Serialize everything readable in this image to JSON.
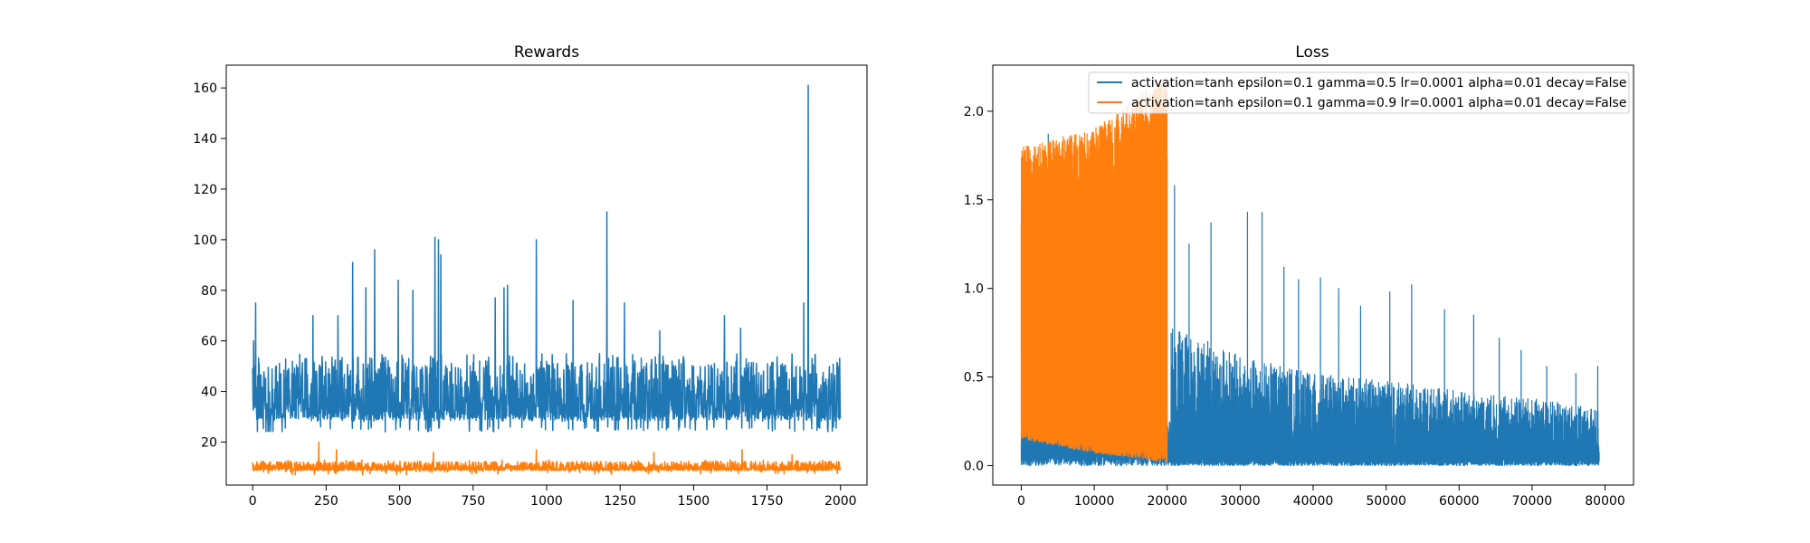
{
  "chart_data": [
    {
      "type": "line",
      "title": "Rewards",
      "xlabel": "",
      "ylabel": "",
      "xlim": [
        -90,
        2090
      ],
      "ylim": [
        3,
        169
      ],
      "xticks": [
        0,
        250,
        500,
        750,
        1000,
        1250,
        1500,
        1750,
        2000
      ],
      "xtick_labels": [
        "0",
        "250",
        "500",
        "750",
        "1000",
        "1250",
        "1500",
        "1750",
        "2000"
      ],
      "yticks": [
        20,
        40,
        60,
        80,
        100,
        120,
        140,
        160
      ],
      "ytick_labels": [
        "20",
        "40",
        "60",
        "80",
        "100",
        "120",
        "140",
        "160"
      ],
      "grid": false,
      "series": [
        {
          "color": "#1f77b4",
          "n_points": 2000,
          "baseline": 30,
          "typical_range": [
            24,
            55
          ],
          "peaks": [
            [
              3,
              60
            ],
            [
              10,
              75
            ],
            [
              205,
              70
            ],
            [
              290,
              70
            ],
            [
              340,
              91
            ],
            [
              385,
              81
            ],
            [
              415,
              96
            ],
            [
              495,
              84
            ],
            [
              545,
              80
            ],
            [
              620,
              101
            ],
            [
              632,
              100
            ],
            [
              640,
              94
            ],
            [
              825,
              77
            ],
            [
              855,
              81
            ],
            [
              867,
              82
            ],
            [
              965,
              100
            ],
            [
              1090,
              76
            ],
            [
              1205,
              111
            ],
            [
              1265,
              75
            ],
            [
              1385,
              64
            ],
            [
              1605,
              70
            ],
            [
              1660,
              65
            ],
            [
              1875,
              75
            ],
            [
              1890,
              161
            ]
          ]
        },
        {
          "color": "#ff7f0e",
          "n_points": 2000,
          "baseline": 9,
          "typical_range": [
            8,
            13
          ],
          "peaks": [
            [
              225,
              20
            ],
            [
              285,
              17
            ],
            [
              615,
              16
            ],
            [
              965,
              17
            ],
            [
              1365,
              16
            ],
            [
              1665,
              17
            ],
            [
              1835,
              15
            ]
          ]
        }
      ]
    },
    {
      "type": "line",
      "title": "Loss",
      "xlabel": "",
      "ylabel": "",
      "xlim": [
        -3900,
        83900
      ],
      "ylim": [
        -0.11,
        2.26
      ],
      "xticks": [
        0,
        10000,
        20000,
        30000,
        40000,
        50000,
        60000,
        70000,
        80000
      ],
      "xtick_labels": [
        "0",
        "10000",
        "20000",
        "30000",
        "40000",
        "50000",
        "60000",
        "70000",
        "80000"
      ],
      "yticks": [
        0.0,
        0.5,
        1.0,
        1.5,
        2.0
      ],
      "ytick_labels": [
        "0.0",
        "0.5",
        "1.0",
        "1.5",
        "2.0"
      ],
      "grid": false,
      "legend_position": "top-right",
      "series": [
        {
          "name": "activation=tanh epsilon=0.1 gamma=0.5 lr=0.0001 alpha=0.01 decay=False",
          "color": "#1f77b4",
          "x_range": [
            0,
            79200
          ],
          "dense_band_top": [
            [
              20500,
              0.8
            ],
            [
              30000,
              0.62
            ],
            [
              40000,
              0.52
            ],
            [
              50000,
              0.48
            ],
            [
              60000,
              0.42
            ],
            [
              70000,
              0.38
            ],
            [
              79200,
              0.32
            ]
          ],
          "peaks": [
            [
              3700,
              1.87
            ],
            [
              7500,
              1.67
            ],
            [
              21000,
              1.58
            ],
            [
              23000,
              1.25
            ],
            [
              26000,
              1.37
            ],
            [
              31000,
              1.43
            ],
            [
              33000,
              1.43
            ],
            [
              36000,
              1.12
            ],
            [
              38000,
              1.05
            ],
            [
              41000,
              1.06
            ],
            [
              43500,
              1.0
            ],
            [
              46500,
              0.9
            ],
            [
              50500,
              0.98
            ],
            [
              53500,
              1.02
            ],
            [
              58000,
              0.88
            ],
            [
              62000,
              0.85
            ],
            [
              65500,
              0.72
            ],
            [
              68500,
              0.65
            ],
            [
              72000,
              0.56
            ],
            [
              76000,
              0.52
            ],
            [
              79000,
              0.56
            ]
          ]
        },
        {
          "name": "activation=tanh epsilon=0.1 gamma=0.9 lr=0.0001 alpha=0.01 decay=False",
          "color": "#ff7f0e",
          "x_range": [
            0,
            20000
          ],
          "band_top": [
            [
              0,
              1.8
            ],
            [
              10000,
              1.9
            ],
            [
              20000,
              2.2
            ]
          ],
          "band_bottom": [
            [
              0,
              0.15
            ],
            [
              10000,
              0.07
            ],
            [
              20000,
              0.02
            ]
          ]
        }
      ]
    }
  ]
}
